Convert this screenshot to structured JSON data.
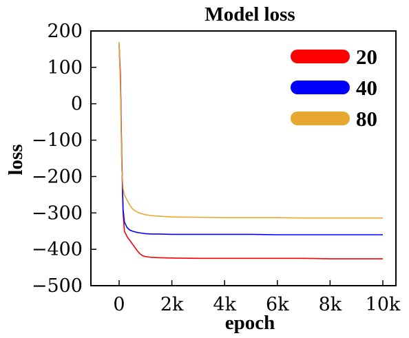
{
  "chart_data": {
    "type": "line",
    "title": "Model loss",
    "xlabel": "epoch",
    "ylabel": "loss",
    "xlim": [
      -1000,
      10500
    ],
    "ylim": [
      -500,
      200
    ],
    "x_ticks": [
      0,
      2000,
      4000,
      6000,
      8000,
      10000
    ],
    "x_tick_labels": [
      "0",
      "2k",
      "4k",
      "6k",
      "8k",
      "10k"
    ],
    "y_ticks": [
      200,
      100,
      0,
      -100,
      -200,
      -300,
      -400,
      -500
    ],
    "y_tick_labels": [
      "200",
      "100",
      "0",
      "−100",
      "−200",
      "−300",
      "−400",
      "−500"
    ],
    "grid": false,
    "legend_position": "top-right",
    "series": [
      {
        "name": "20",
        "color": "#ff0000",
        "x": [
          0,
          50,
          100,
          150,
          200,
          300,
          400,
          500,
          600,
          700,
          800,
          900,
          1000,
          1200,
          1500,
          2000,
          3000,
          4000,
          5000,
          6000,
          7000,
          8000,
          9000,
          10000
        ],
        "y": [
          165,
          80,
          -150,
          -300,
          -350,
          -365,
          -375,
          -385,
          -395,
          -405,
          -413,
          -418,
          -420,
          -422,
          -423,
          -424,
          -425,
          -425,
          -425,
          -425,
          -425,
          -426,
          -426,
          -426
        ]
      },
      {
        "name": "40",
        "color": "#0000ff",
        "x": [
          0,
          50,
          100,
          150,
          200,
          300,
          400,
          500,
          600,
          700,
          800,
          900,
          1000,
          1200,
          1500,
          2000,
          3000,
          4000,
          5000,
          6000,
          7000,
          8000,
          9000,
          10000
        ],
        "y": [
          160,
          60,
          -150,
          -290,
          -325,
          -340,
          -347,
          -350,
          -352,
          -354,
          -355,
          -356,
          -357,
          -358,
          -358,
          -359,
          -359,
          -359,
          -359,
          -360,
          -360,
          -360,
          -360,
          -360
        ]
      },
      {
        "name": "80",
        "color": "#e6a82f",
        "x": [
          0,
          50,
          100,
          150,
          200,
          300,
          400,
          500,
          600,
          700,
          800,
          900,
          1000,
          1200,
          1500,
          2000,
          3000,
          4000,
          5000,
          6000,
          7000,
          8000,
          9000,
          10000
        ],
        "y": [
          170,
          40,
          -180,
          -232,
          -250,
          -265,
          -278,
          -288,
          -294,
          -298,
          -301,
          -303,
          -305,
          -307,
          -309,
          -311,
          -312,
          -313,
          -313,
          -313,
          -314,
          -314,
          -314,
          -314
        ]
      }
    ]
  }
}
